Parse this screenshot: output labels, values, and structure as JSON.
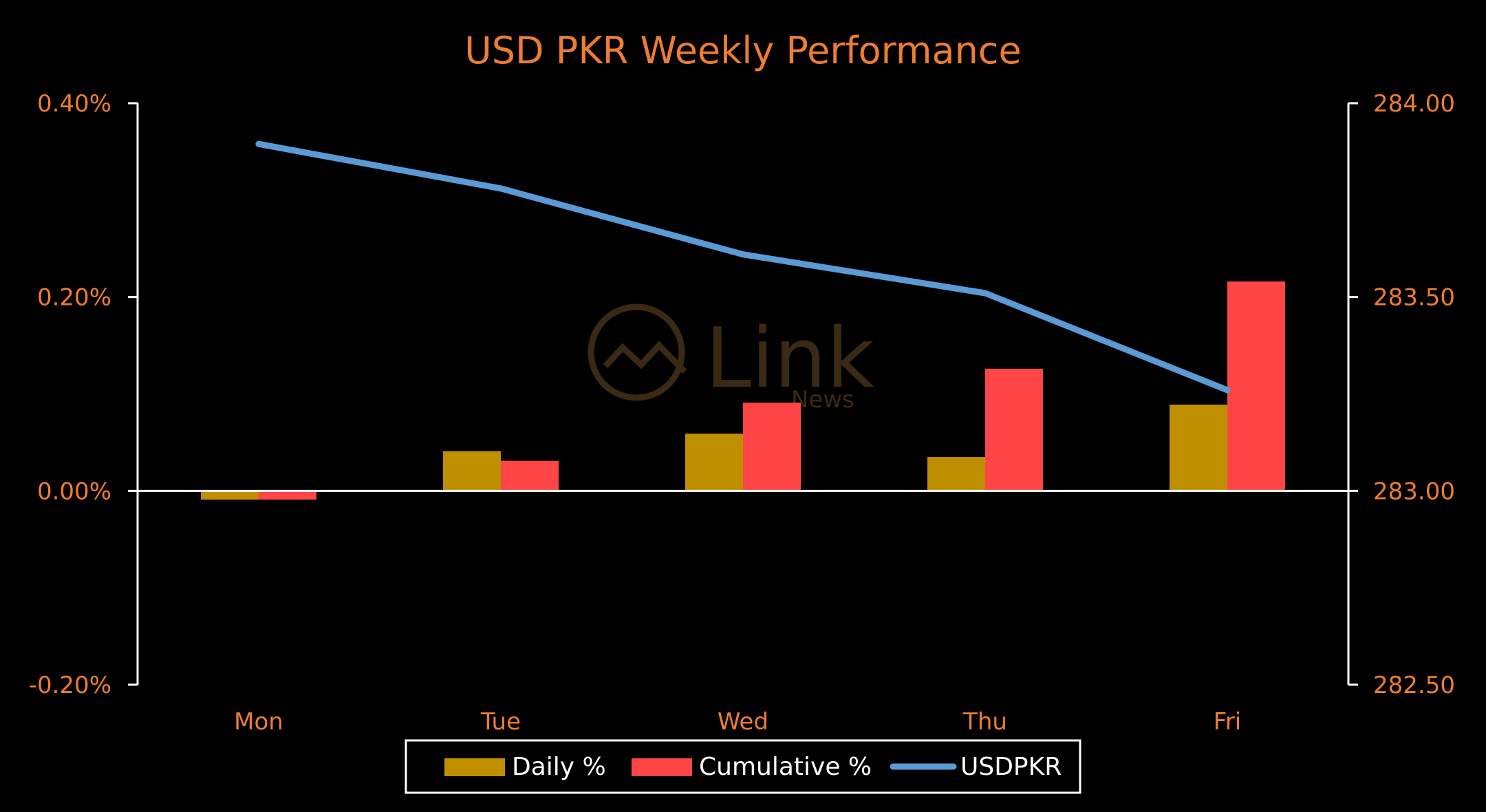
{
  "colors": {
    "background": "#000000",
    "text": "#ED7D31",
    "axis": "#FFFFFF",
    "daily": "#BF8F00",
    "cumulative": "#FF4545",
    "line": "#5B9BD5",
    "watermark": "#3A2A14"
  },
  "watermark": {
    "name": "Link",
    "sub": "News"
  },
  "chart_data": {
    "type": "bar",
    "title": "USD PKR Weekly Performance",
    "categories": [
      "Mon",
      "Tue",
      "Wed",
      "Thu",
      "Fri"
    ],
    "series": [
      {
        "name": "Daily %",
        "type": "bar",
        "axis": "left",
        "values": [
          -0.009,
          0.041,
          0.059,
          0.035,
          0.089
        ]
      },
      {
        "name": "Cumulative %",
        "type": "bar",
        "axis": "left",
        "values": [
          -0.009,
          0.031,
          0.091,
          0.126,
          0.216
        ]
      },
      {
        "name": "USDPKR",
        "type": "line",
        "axis": "right",
        "values": [
          283.895,
          283.78,
          283.61,
          283.51,
          283.26
        ]
      }
    ],
    "y_left": {
      "min": -0.2,
      "max": 0.4,
      "ticks": [
        "0.40%",
        "0.20%",
        "0.00%",
        "-0.20%"
      ]
    },
    "y_right": {
      "min": 282.5,
      "max": 284.0,
      "ticks": [
        "284.00",
        "283.50",
        "283.00",
        "282.50"
      ]
    },
    "legend_position": "bottom",
    "grid": false
  }
}
